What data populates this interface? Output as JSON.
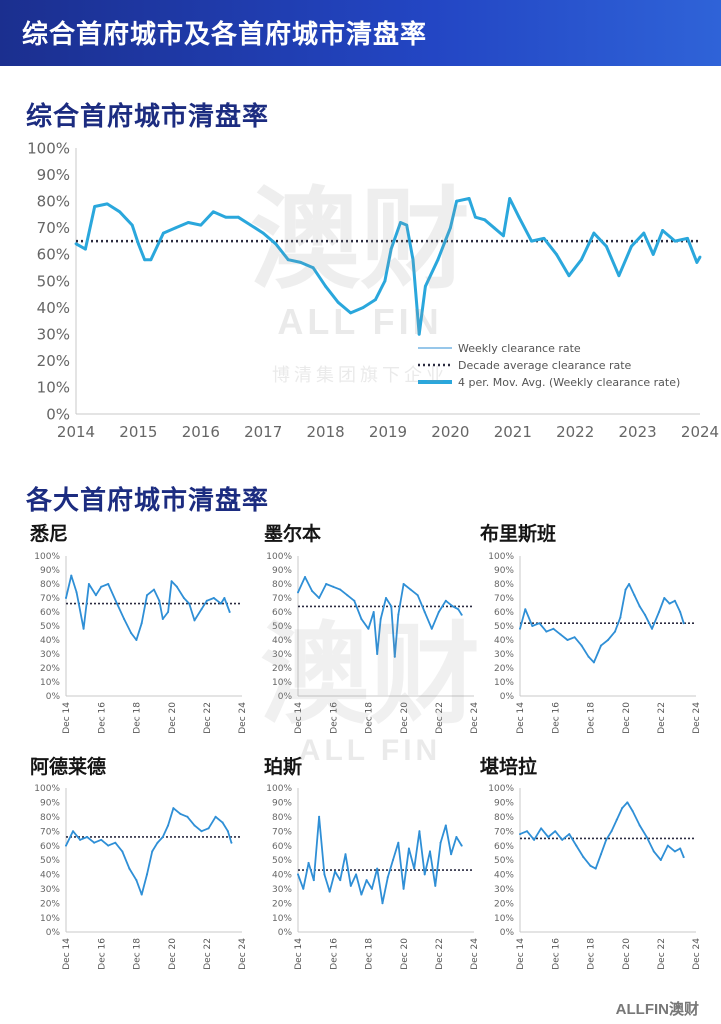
{
  "banner": {
    "title": "综合首府城市及各首府城市清盘率"
  },
  "sections": {
    "combined_title": "综合首府城市清盘率",
    "cities_title": "各大首府城市清盘率"
  },
  "watermark": {
    "logo": "ALL FIN",
    "tagline": "博清集团旗下企业",
    "cn": "澳财"
  },
  "footer": {
    "logo": "ALLFIN澳财"
  },
  "colors": {
    "line": "#2f8fd6",
    "line_thick": "#2aa7dc",
    "avg": "#2b2b40",
    "banner": "#1b2f8f",
    "section": "#1c2c80"
  },
  "chart_data": [
    {
      "type": "line",
      "name": "combined",
      "title": "综合首府城市清盘率",
      "ylim": [
        0,
        100
      ],
      "yticks": [
        "0%",
        "10%",
        "20%",
        "30%",
        "40%",
        "50%",
        "60%",
        "70%",
        "80%",
        "90%",
        "100%"
      ],
      "xlim": [
        2014,
        2024
      ],
      "xticks": [
        "2014",
        "2015",
        "2016",
        "2017",
        "2018",
        "2019",
        "2020",
        "2021",
        "2022",
        "2023",
        "2024"
      ],
      "average": 65,
      "legend": [
        "Weekly clearance rate",
        "Decade average clearance rate",
        "4 per. Mov. Avg. (Weekly clearance rate)"
      ],
      "legend_position": "bottom-right",
      "x": [
        2014.0,
        2014.15,
        2014.3,
        2014.5,
        2014.7,
        2014.9,
        2015.0,
        2015.1,
        2015.2,
        2015.4,
        2015.6,
        2015.8,
        2016.0,
        2016.2,
        2016.4,
        2016.6,
        2016.8,
        2017.0,
        2017.2,
        2017.4,
        2017.6,
        2017.8,
        2018.0,
        2018.2,
        2018.4,
        2018.6,
        2018.8,
        2018.95,
        2019.05,
        2019.2,
        2019.3,
        2019.4,
        2019.5,
        2019.6,
        2019.8,
        2020.0,
        2020.1,
        2020.3,
        2020.4,
        2020.55,
        2020.7,
        2020.85,
        2020.95,
        2021.1,
        2021.3,
        2021.5,
        2021.7,
        2021.9,
        2022.1,
        2022.3,
        2022.5,
        2022.7,
        2022.9,
        2023.1,
        2023.25,
        2023.4,
        2023.6,
        2023.8,
        2023.95,
        2024.0
      ],
      "values": [
        64,
        62,
        78,
        79,
        76,
        71,
        64,
        58,
        58,
        68,
        70,
        72,
        71,
        76,
        74,
        74,
        71,
        68,
        64,
        58,
        57,
        55,
        48,
        42,
        38,
        40,
        43,
        50,
        62,
        72,
        71,
        58,
        30,
        48,
        58,
        70,
        80,
        81,
        74,
        73,
        70,
        67,
        81,
        74,
        65,
        66,
        60,
        52,
        58,
        68,
        63,
        52,
        63,
        68,
        60,
        69,
        65,
        66,
        57,
        59
      ]
    },
    {
      "type": "line",
      "name": "sydney",
      "title": "悉尼",
      "ylim": [
        0,
        100
      ],
      "yticks": [
        "0%",
        "10%",
        "20%",
        "30%",
        "40%",
        "50%",
        "60%",
        "70%",
        "80%",
        "90%",
        "100%"
      ],
      "xlim": [
        2014.9,
        2024.9
      ],
      "xticks": [
        "Dec 14",
        "Dec 16",
        "Dec 18",
        "Dec 20",
        "Dec 22",
        "Dec 24"
      ],
      "average": 66,
      "x": [
        2014.9,
        2015.2,
        2015.5,
        2015.9,
        2016.2,
        2016.6,
        2016.9,
        2017.3,
        2017.8,
        2018.2,
        2018.6,
        2018.9,
        2019.2,
        2019.5,
        2019.9,
        2020.2,
        2020.4,
        2020.7,
        2020.9,
        2021.2,
        2021.6,
        2021.9,
        2022.2,
        2022.6,
        2022.9,
        2023.3,
        2023.7,
        2023.9,
        2024.2
      ],
      "values": [
        70,
        86,
        74,
        48,
        80,
        72,
        78,
        80,
        66,
        55,
        45,
        40,
        52,
        72,
        76,
        68,
        55,
        60,
        82,
        78,
        70,
        66,
        54,
        62,
        68,
        70,
        66,
        70,
        60
      ]
    },
    {
      "type": "line",
      "name": "melbourne",
      "title": "墨尔本",
      "ylim": [
        0,
        100
      ],
      "yticks": [
        "0%",
        "10%",
        "20%",
        "30%",
        "40%",
        "50%",
        "60%",
        "70%",
        "80%",
        "90%",
        "100%"
      ],
      "xlim": [
        2014.9,
        2024.9
      ],
      "xticks": [
        "Dec 14",
        "Dec 16",
        "Dec 18",
        "Dec 20",
        "Dec 22",
        "Dec 24"
      ],
      "average": 64,
      "x": [
        2014.9,
        2015.3,
        2015.7,
        2016.1,
        2016.5,
        2016.9,
        2017.3,
        2017.7,
        2018.1,
        2018.5,
        2018.9,
        2019.2,
        2019.4,
        2019.6,
        2019.9,
        2020.2,
        2020.4,
        2020.6,
        2020.9,
        2021.3,
        2021.7,
        2022.1,
        2022.5,
        2022.9,
        2023.3,
        2023.7,
        2024.0,
        2024.2
      ],
      "values": [
        74,
        85,
        75,
        70,
        80,
        78,
        76,
        72,
        68,
        55,
        48,
        60,
        30,
        55,
        70,
        64,
        28,
        58,
        80,
        76,
        72,
        60,
        48,
        60,
        68,
        64,
        62,
        58
      ]
    },
    {
      "type": "line",
      "name": "brisbane",
      "title": "布里斯班",
      "ylim": [
        0,
        100
      ],
      "yticks": [
        "0%",
        "10%",
        "20%",
        "30%",
        "40%",
        "50%",
        "60%",
        "70%",
        "80%",
        "90%",
        "100%"
      ],
      "xlim": [
        2014.9,
        2024.9
      ],
      "xticks": [
        "Dec 14",
        "Dec 16",
        "Dec 18",
        "Dec 20",
        "Dec 22",
        "Dec 24"
      ],
      "average": 52,
      "x": [
        2014.9,
        2015.2,
        2015.6,
        2016.0,
        2016.4,
        2016.8,
        2017.2,
        2017.6,
        2018.0,
        2018.4,
        2018.8,
        2019.1,
        2019.5,
        2019.9,
        2020.3,
        2020.6,
        2020.9,
        2021.1,
        2021.4,
        2021.7,
        2022.0,
        2022.4,
        2022.8,
        2023.1,
        2023.4,
        2023.7,
        2024.0,
        2024.2
      ],
      "values": [
        48,
        62,
        50,
        52,
        46,
        48,
        44,
        40,
        42,
        36,
        28,
        24,
        36,
        40,
        46,
        56,
        76,
        80,
        72,
        64,
        58,
        48,
        60,
        70,
        66,
        68,
        60,
        52
      ]
    },
    {
      "type": "line",
      "name": "adelaide",
      "title": "阿德莱德",
      "ylim": [
        0,
        100
      ],
      "yticks": [
        "0%",
        "10%",
        "20%",
        "30%",
        "40%",
        "50%",
        "60%",
        "70%",
        "80%",
        "90%",
        "100%"
      ],
      "xlim": [
        2014.9,
        2024.9
      ],
      "xticks": [
        "Dec 14",
        "Dec 16",
        "Dec 18",
        "Dec 20",
        "Dec 22",
        "Dec 24"
      ],
      "average": 66,
      "x": [
        2014.9,
        2015.3,
        2015.7,
        2016.1,
        2016.5,
        2016.9,
        2017.3,
        2017.7,
        2018.1,
        2018.5,
        2018.9,
        2019.2,
        2019.5,
        2019.8,
        2020.1,
        2020.4,
        2020.7,
        2021.0,
        2021.4,
        2021.8,
        2022.2,
        2022.6,
        2023.0,
        2023.4,
        2023.8,
        2024.1,
        2024.3
      ],
      "values": [
        60,
        70,
        64,
        66,
        62,
        64,
        60,
        62,
        56,
        44,
        36,
        26,
        40,
        56,
        62,
        66,
        74,
        86,
        82,
        80,
        74,
        70,
        72,
        80,
        76,
        70,
        62
      ]
    },
    {
      "type": "line",
      "name": "perth",
      "title": "珀斯",
      "ylim": [
        0,
        100
      ],
      "yticks": [
        "0%",
        "10%",
        "20%",
        "30%",
        "40%",
        "50%",
        "60%",
        "70%",
        "80%",
        "90%",
        "100%"
      ],
      "xlim": [
        2014.9,
        2024.9
      ],
      "xticks": [
        "Dec 14",
        "Dec 16",
        "Dec 18",
        "Dec 20",
        "Dec 22",
        "Dec 24"
      ],
      "average": 43,
      "x": [
        2014.9,
        2015.2,
        2015.5,
        2015.8,
        2016.1,
        2016.4,
        2016.7,
        2017.0,
        2017.3,
        2017.6,
        2017.9,
        2018.2,
        2018.5,
        2018.8,
        2019.1,
        2019.4,
        2019.7,
        2020.0,
        2020.3,
        2020.6,
        2020.9,
        2021.2,
        2021.5,
        2021.8,
        2022.1,
        2022.4,
        2022.7,
        2023.0,
        2023.3,
        2023.6,
        2023.9,
        2024.2
      ],
      "values": [
        40,
        30,
        48,
        36,
        80,
        40,
        28,
        42,
        36,
        54,
        32,
        40,
        26,
        36,
        30,
        44,
        20,
        38,
        50,
        62,
        30,
        58,
        44,
        70,
        40,
        56,
        32,
        62,
        74,
        54,
        66,
        60
      ]
    },
    {
      "type": "line",
      "name": "canberra",
      "title": "堪培拉",
      "ylim": [
        0,
        100
      ],
      "yticks": [
        "0%",
        "10%",
        "20%",
        "30%",
        "40%",
        "50%",
        "60%",
        "70%",
        "80%",
        "90%",
        "100%"
      ],
      "xlim": [
        2014.9,
        2024.9
      ],
      "xticks": [
        "Dec 14",
        "Dec 16",
        "Dec 18",
        "Dec 20",
        "Dec 22",
        "Dec 24"
      ],
      "average": 65,
      "x": [
        2014.9,
        2015.3,
        2015.7,
        2016.1,
        2016.5,
        2016.9,
        2017.3,
        2017.7,
        2018.1,
        2018.5,
        2018.9,
        2019.2,
        2019.5,
        2019.8,
        2020.1,
        2020.4,
        2020.7,
        2021.0,
        2021.3,
        2021.7,
        2022.1,
        2022.5,
        2022.9,
        2023.3,
        2023.7,
        2024.0,
        2024.2
      ],
      "values": [
        68,
        70,
        64,
        72,
        66,
        70,
        64,
        68,
        60,
        52,
        46,
        44,
        54,
        64,
        70,
        78,
        86,
        90,
        84,
        74,
        66,
        56,
        50,
        60,
        56,
        58,
        52
      ]
    }
  ]
}
